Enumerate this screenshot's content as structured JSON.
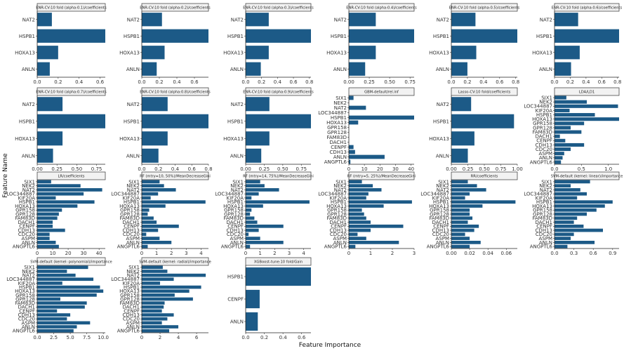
{
  "figure": {
    "xlabel": "Feature Importance",
    "ylabel": "Feature Name",
    "bar_color": "#1c5a87",
    "header_fill": "#f2f2f2",
    "header_stroke": "#333333"
  },
  "chart_data": [
    {
      "type": "bar",
      "orientation": "horizontal",
      "title": "ENR-CV:10 fold (alpha:0.1)/coefficients",
      "categories": [
        "NAT2",
        "HSPB1",
        "HOXA13",
        "ANLN"
      ],
      "values": [
        0.14,
        0.65,
        0.2,
        0.12
      ],
      "xlim": [
        0,
        0.65
      ],
      "xticks": [
        0.0,
        0.2,
        0.4,
        0.6
      ],
      "xtick_labels": [
        "0.0",
        "0.2",
        "0.4",
        "0.6"
      ]
    },
    {
      "type": "bar",
      "orientation": "horizontal",
      "title": "ENR-CV:10 fold (alpha:0.2)/coefficients",
      "categories": [
        "NAT2",
        "HSPB1",
        "HOXA13",
        "ANLN"
      ],
      "values": [
        0.23,
        0.76,
        0.26,
        0.17
      ],
      "xlim": [
        0,
        0.76
      ],
      "xticks": [
        0.0,
        0.2,
        0.4,
        0.6
      ],
      "xtick_labels": [
        "0.0",
        "0.2",
        "0.4",
        "0.6"
      ]
    },
    {
      "type": "bar",
      "orientation": "horizontal",
      "title": "ENR-CV:10 fold (alpha:0.3)/coefficients",
      "categories": [
        "NAT2",
        "HSPB1",
        "HOXA13",
        "ANLN"
      ],
      "values": [
        0.29,
        0.82,
        0.29,
        0.19
      ],
      "xlim": [
        0,
        0.82
      ],
      "xticks": [
        0.0,
        0.2,
        0.4,
        0.6,
        0.8
      ],
      "xtick_labels": [
        "0.0",
        "0.2",
        "0.4",
        "0.6",
        "0.8"
      ]
    },
    {
      "type": "bar",
      "orientation": "horizontal",
      "title": "ENR-CV:10 fold (alpha:0.4)/coefficients",
      "categories": [
        "NAT2",
        "HSPB1",
        "HOXA13",
        "ANLN"
      ],
      "values": [
        0.33,
        0.8,
        0.33,
        0.2
      ],
      "xlim": [
        0,
        0.8
      ],
      "xticks": [
        0.0,
        0.25,
        0.5,
        0.75
      ],
      "xtick_labels": [
        "0.00",
        "0.25",
        "0.50",
        "0.75"
      ]
    },
    {
      "type": "bar",
      "orientation": "horizontal",
      "title": "ENR-CV:10 fold (alpha:0.5)/coefficients",
      "categories": [
        "NAT2",
        "HSPB1",
        "HOXA13",
        "ANLN"
      ],
      "values": [
        0.3,
        0.82,
        0.31,
        0.2
      ],
      "xlim": [
        0,
        0.82
      ],
      "xticks": [
        0.0,
        0.2,
        0.4,
        0.6,
        0.8
      ],
      "xtick_labels": [
        "0.0",
        "0.2",
        "0.4",
        "0.6",
        "0.8"
      ]
    },
    {
      "type": "bar",
      "orientation": "horizontal",
      "title": "ENR-CV:10 fold (alpha:0.6)/coefficients",
      "categories": [
        "NAT2",
        "HSPB1",
        "HOXA13",
        "ANLN"
      ],
      "values": [
        0.3,
        0.82,
        0.32,
        0.21
      ],
      "xlim": [
        0,
        0.82
      ],
      "xticks": [
        0.0,
        0.2,
        0.4,
        0.6,
        0.8
      ],
      "xtick_labels": [
        "0.0",
        "0.2",
        "0.4",
        "0.6",
        "0.8"
      ]
    },
    {
      "type": "bar",
      "orientation": "horizontal",
      "title": "ENR-CV:10 fold (alpha:0.7)/coefficients",
      "categories": [
        "NAT2",
        "HSPB1",
        "HOXA13",
        "ANLN"
      ],
      "values": [
        0.32,
        0.86,
        0.32,
        0.2
      ],
      "xlim": [
        0,
        0.86
      ],
      "xticks": [
        0.0,
        0.25,
        0.5,
        0.75
      ],
      "xtick_labels": [
        "0.00",
        "0.25",
        "0.50",
        "0.75"
      ]
    },
    {
      "type": "bar",
      "orientation": "horizontal",
      "title": "ENR-CV:10 fold (alpha:0.8)/coefficients",
      "categories": [
        "NAT2",
        "HSPB1",
        "HOXA13",
        "ANLN"
      ],
      "values": [
        0.31,
        0.8,
        0.31,
        0.2
      ],
      "xlim": [
        0,
        0.8
      ],
      "xticks": [
        0.0,
        0.2,
        0.4,
        0.6,
        0.8
      ],
      "xtick_labels": [
        "0.0",
        "0.2",
        "0.4",
        "0.6",
        "0.8"
      ]
    },
    {
      "type": "bar",
      "orientation": "horizontal",
      "title": "ENR-CV:10 fold (alpha:0.9)/coefficients",
      "categories": [
        "NAT2",
        "HSPB1",
        "HOXA13",
        "ANLN"
      ],
      "values": [
        0.32,
        0.88,
        0.32,
        0.21
      ],
      "xlim": [
        0,
        0.88
      ],
      "xticks": [
        0.0,
        0.25,
        0.5,
        0.75
      ],
      "xtick_labels": [
        "0.00",
        "0.25",
        "0.50",
        "0.75"
      ]
    },
    {
      "type": "bar",
      "orientation": "horizontal",
      "title": "GBM-default/rel.inf",
      "categories": [
        "SIX1",
        "NEK2",
        "NAT2",
        "LOC344887",
        "HSPB1",
        "HOXA13",
        "GPR158",
        "GPR128",
        "FAM83D",
        "DACH1",
        "CENPF",
        "CDH13",
        "ANLN",
        "ANGPTL6"
      ],
      "values": [
        3,
        0,
        11,
        0,
        42,
        6,
        0,
        0,
        0,
        0,
        3,
        4,
        23,
        1
      ],
      "xlim": [
        0,
        42
      ],
      "xticks": [
        0,
        10,
        20,
        30,
        40
      ],
      "xtick_labels": [
        "0",
        "10",
        "20",
        "30",
        "40"
      ]
    },
    {
      "type": "bar",
      "orientation": "horizontal",
      "title": "Lasso-CV:10 fold/coefficients",
      "categories": [
        "NAT2",
        "HSPB1",
        "HOXA13",
        "ANLN"
      ],
      "values": [
        0.3,
        0.95,
        0.35,
        0.25
      ],
      "xlim": [
        0,
        1.0
      ],
      "xticks": [
        0.0,
        0.25,
        0.5,
        0.75,
        1.0
      ],
      "xtick_labels": [
        "0.00",
        "0.25",
        "0.50",
        "0.75",
        "1.00"
      ]
    },
    {
      "type": "bar",
      "orientation": "horizontal",
      "title": "LDA/LD1",
      "categories": [
        "SIX1",
        "NEK2",
        "LOC344887",
        "KIF20A",
        "HSPB1",
        "HOXA13",
        "GPR158",
        "GPR128",
        "FAM83D",
        "DACH1",
        "CENPF",
        "CDH13",
        "CDC20",
        "ASPM",
        "ANLN",
        "ANGPTL6"
      ],
      "values": [
        0.22,
        0.6,
        1.18,
        0.28,
        0.75,
        1.2,
        0.55,
        0.3,
        0.5,
        0.1,
        0.2,
        0.55,
        0.3,
        0.18,
        0.15,
        0.12
      ],
      "xlim": [
        0,
        1.2
      ],
      "xticks": [
        0.0,
        0.5,
        1.0
      ],
      "xtick_labels": [
        "0.0",
        "0.5",
        "1.0"
      ]
    },
    {
      "type": "bar",
      "orientation": "horizontal",
      "title": "LR/coefficients",
      "categories": [
        "SIX1",
        "NEK2",
        "NAT2",
        "LOC344887",
        "KIF20A",
        "HSPB1",
        "HOXA13",
        "GPR158",
        "GPR128",
        "FAM83D",
        "DACH1",
        "CENPF",
        "CDH13",
        "CDC20",
        "ASPM",
        "ANLN",
        "ANGPTL6"
      ],
      "values": [
        9,
        28,
        42,
        30,
        12,
        37,
        26,
        16,
        14,
        13,
        10,
        10,
        18,
        8,
        8,
        12,
        14
      ],
      "xlim": [
        0,
        44
      ],
      "xticks": [
        0,
        10,
        20,
        30,
        40
      ],
      "xtick_labels": [
        "0",
        "10",
        "20",
        "30",
        "40"
      ]
    },
    {
      "type": "bar",
      "orientation": "horizontal",
      "title": "RF (mtry=10, 50%)/MeanDecreaseGini",
      "categories": [
        "SIX1",
        "NEK2",
        "NAT2",
        "LOC344887",
        "KIF20A",
        "HSPB1",
        "HOXA13",
        "GPR158",
        "GPR128",
        "FAM83D",
        "DACH1",
        "CENPF",
        "CDH13",
        "CDC20",
        "ASPM",
        "ANLN",
        "ANGPTL6"
      ],
      "values": [
        1.2,
        1.5,
        2.3,
        1.1,
        0.6,
        4.3,
        1.6,
        0.5,
        0.4,
        0.8,
        1.0,
        2.5,
        1.1,
        0.3,
        1.2,
        2.0,
        0.4
      ],
      "xlim": [
        0,
        4.5
      ],
      "xticks": [
        0,
        1,
        2,
        3,
        4
      ],
      "xtick_labels": [
        "0",
        "1",
        "2",
        "3",
        "4"
      ]
    },
    {
      "type": "bar",
      "orientation": "horizontal",
      "title": "RF (mtry=14, 75%)/MeanDecreaseGini",
      "categories": [
        "SIX1",
        "NEK2",
        "NAT2",
        "LOC344887",
        "KIF20A",
        "HSPB1",
        "HOXA13",
        "GPR158",
        "GPR128",
        "FAM83D",
        "DACH1",
        "CENPF",
        "CDH13",
        "CDC20",
        "ASPM",
        "ANLN",
        "ANGPTL6"
      ],
      "values": [
        1.0,
        1.3,
        2.3,
        0.9,
        0.4,
        4.4,
        1.2,
        0.4,
        0.3,
        0.6,
        0.8,
        2.6,
        0.9,
        0.2,
        1.0,
        2.6,
        0.3
      ],
      "xlim": [
        0,
        4.5
      ],
      "xticks": [
        0,
        1,
        2,
        3,
        4
      ],
      "xtick_labels": [
        "0",
        "1",
        "2",
        "3",
        "4"
      ]
    },
    {
      "type": "bar",
      "orientation": "horizontal",
      "title": "RF (mtry=5, 25%)/MeanDecreaseGini",
      "categories": [
        "SIX1",
        "NEK2",
        "NAT2",
        "LOC344887",
        "KIF20A",
        "HSPB1",
        "HOXA13",
        "GPR158",
        "GPR128",
        "FAM83D",
        "DACH1",
        "CENPF",
        "CDH13",
        "CDC20",
        "ASPM",
        "ANLN",
        "ANGPTL6"
      ],
      "values": [
        0.6,
        1.1,
        1.5,
        0.9,
        0.8,
        2.9,
        1.6,
        0.6,
        0.7,
        0.8,
        1.0,
        2.5,
        1.0,
        0.4,
        0.8,
        2.3,
        0.3
      ],
      "xlim": [
        0,
        3
      ],
      "xticks": [
        0,
        1,
        2,
        3
      ],
      "xtick_labels": [
        "0",
        "1",
        "2",
        "3"
      ]
    },
    {
      "type": "bar",
      "orientation": "horizontal",
      "title": "RR/coefficients",
      "categories": [
        "SIX1",
        "NEK2",
        "NAT2",
        "LOC344887",
        "KIF20A",
        "HSPB1",
        "HOXA13",
        "GPR158",
        "GPR128",
        "FAM83D",
        "DACH1",
        "CENPF",
        "CDH13",
        "CDC20",
        "ASPM",
        "ANLN",
        "ANGPTL6"
      ],
      "values": [
        0.018,
        0.028,
        0.038,
        0.02,
        0.015,
        0.07,
        0.034,
        0.02,
        0.02,
        0.023,
        0.018,
        0.03,
        0.025,
        0.015,
        0.02,
        0.032,
        0.02
      ],
      "xlim": [
        0,
        0.072
      ],
      "xticks": [
        0.0,
        0.02,
        0.04,
        0.06
      ],
      "xtick_labels": [
        "0.00",
        "0.02",
        "0.04",
        "0.06"
      ]
    },
    {
      "type": "bar",
      "orientation": "horizontal",
      "title": "SVM-default (kernel: linear)/importance",
      "categories": [
        "SIX1",
        "NEK2",
        "NAT2",
        "LOC344887",
        "KIF20A",
        "HSPB1",
        "HOXA13",
        "GPR158",
        "GPR128",
        "FAM83D",
        "DACH1",
        "CENPF",
        "CDH13",
        "CDC20",
        "ASPM",
        "ANLN",
        "ANGPTL6"
      ],
      "values": [
        0.55,
        0.25,
        0.4,
        0.5,
        0.35,
        0.9,
        0.78,
        0.65,
        0.5,
        0.35,
        0.3,
        0.45,
        0.75,
        0.3,
        0.25,
        0.62,
        0.2
      ],
      "xlim": [
        0,
        1.0
      ],
      "xticks": [
        0.0,
        0.3,
        0.6,
        0.9
      ],
      "xtick_labels": [
        "0.0",
        "0.3",
        "0.6",
        "0.9"
      ]
    },
    {
      "type": "bar",
      "orientation": "horizontal",
      "title": "SVM-default (kernel: polynomial)/importance",
      "categories": [
        "SIX1",
        "NEK2",
        "NAT2",
        "LOC344887",
        "KIF20A",
        "HSPB1",
        "HOXA13",
        "GPR158",
        "GPR128",
        "FAM83D",
        "DACH1",
        "CENPF",
        "CDH13",
        "CDC20",
        "ASPM",
        "ANLN",
        "ANGPTL6"
      ],
      "values": [
        7.7,
        4.5,
        5.8,
        8.5,
        3.8,
        9.5,
        10.0,
        9.0,
        3.5,
        7.5,
        7.2,
        3.0,
        5.0,
        4.5,
        8.0,
        6.0,
        5.5
      ],
      "xlim": [
        0,
        10.3
      ],
      "xticks": [
        0.0,
        2.5,
        5.0,
        7.5,
        10.0
      ],
      "xtick_labels": [
        "0.0",
        "2.5",
        "5.0",
        "7.5",
        "10.0"
      ]
    },
    {
      "type": "bar",
      "orientation": "horizontal",
      "title": "SVM-default (kernel: radial)/importance",
      "categories": [
        "SIX1",
        "NEK2",
        "NAT2",
        "LOC344887",
        "KIF20A",
        "HSPB1",
        "HOXA13",
        "GPR158",
        "GPR128",
        "FAM83D",
        "DACH1",
        "CENPF",
        "CDH13",
        "CDC20",
        "ASPM",
        "ANLN",
        "ANGPTL6"
      ],
      "values": [
        2.3,
        2.8,
        7.0,
        3.5,
        2.0,
        6.5,
        5.2,
        3.6,
        5.6,
        2.5,
        2.4,
        2.2,
        3.5,
        2.8,
        2.2,
        4.0,
        3.0
      ],
      "xlim": [
        0,
        7.3
      ],
      "xticks": [
        0,
        2,
        4,
        6
      ],
      "xtick_labels": [
        "0",
        "2",
        "4",
        "6"
      ]
    },
    {
      "type": "bar",
      "orientation": "horizontal",
      "title": "XGBoost-tune:10 fold/Gain",
      "categories": [
        "HSPB1",
        "CENPF",
        "ANLN"
      ],
      "values": [
        0.7,
        0.15,
        0.13
      ],
      "xlim": [
        0,
        0.7
      ],
      "xticks": [
        0.0,
        0.2,
        0.4,
        0.6
      ],
      "xtick_labels": [
        "0.0",
        "0.2",
        "0.4",
        "0.6"
      ]
    }
  ]
}
